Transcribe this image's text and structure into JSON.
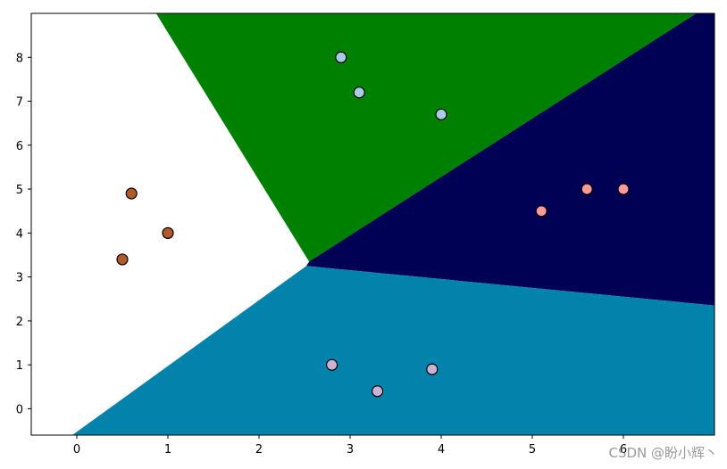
{
  "chart_data": {
    "type": "scatter",
    "title": "",
    "xlabel": "",
    "ylabel": "",
    "xlim": [
      -0.5,
      7.0
    ],
    "ylim": [
      -0.6,
      9.0
    ],
    "x_ticks": [
      "0",
      "1",
      "2",
      "3",
      "4",
      "5",
      "6"
    ],
    "y_ticks": [
      "0",
      "1",
      "2",
      "3",
      "4",
      "5",
      "6",
      "7",
      "8"
    ],
    "grid": false,
    "legend": "none",
    "regions": [
      {
        "color": "#ffffff",
        "points": [
          [
            -0.5,
            9.0
          ],
          [
            0.87,
            9.0
          ],
          [
            2.55,
            3.35
          ],
          [
            2.52,
            3.25
          ],
          [
            -0.05,
            -0.6
          ],
          [
            -0.5,
            -0.6
          ]
        ]
      },
      {
        "color": "#008000",
        "points": [
          [
            0.87,
            9.0
          ],
          [
            6.8,
            9.0
          ],
          [
            2.55,
            3.35
          ]
        ]
      },
      {
        "color": "#000055",
        "points": [
          [
            6.8,
            9.0
          ],
          [
            7.0,
            9.0
          ],
          [
            7.0,
            2.35
          ],
          [
            2.52,
            3.25
          ],
          [
            2.55,
            3.35
          ]
        ]
      },
      {
        "color": "#0283ab",
        "points": [
          [
            2.52,
            3.25
          ],
          [
            7.0,
            2.35
          ],
          [
            7.0,
            -0.6
          ],
          [
            -0.05,
            -0.6
          ]
        ]
      }
    ],
    "series": [
      {
        "color": "#a6cee3",
        "points": [
          [
            2.9,
            8.0
          ],
          [
            3.1,
            7.2
          ],
          [
            4.0,
            6.7
          ]
        ]
      },
      {
        "color": "#b15928",
        "points": [
          [
            0.6,
            4.9
          ],
          [
            1.0,
            4.0
          ],
          [
            0.5,
            3.4
          ]
        ]
      },
      {
        "color": "#fb9a99",
        "points": [
          [
            5.1,
            4.5
          ],
          [
            5.6,
            5.0
          ],
          [
            6.0,
            5.0
          ]
        ]
      },
      {
        "color": "#cab2d6",
        "points": [
          [
            2.8,
            1.0
          ],
          [
            3.3,
            0.4
          ],
          [
            3.9,
            0.9
          ]
        ]
      }
    ]
  },
  "watermark": "CSDN @盼小辉丶"
}
